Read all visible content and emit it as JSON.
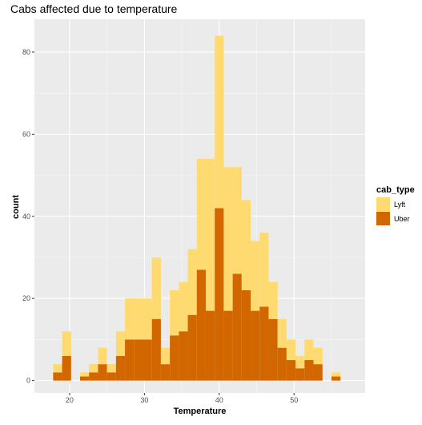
{
  "chart_data": {
    "type": "bar",
    "title": "Cabs affected due to temperature",
    "xlabel": "Temperature",
    "ylabel": "count",
    "stacked": true,
    "bin_width": 1.2,
    "xlim": [
      15.3,
      59.5
    ],
    "ylim": [
      -3,
      88
    ],
    "x_ticks": [
      20,
      30,
      40,
      50
    ],
    "y_ticks": [
      0,
      20,
      40,
      60,
      80
    ],
    "grid": true,
    "legend": {
      "title": "cab_type",
      "position": "right"
    },
    "bin_centers": [
      18.4,
      19.6,
      20.8,
      22.0,
      23.2,
      24.4,
      25.6,
      26.8,
      28.0,
      29.2,
      30.4,
      31.6,
      32.8,
      34.0,
      35.2,
      36.4,
      37.6,
      38.8,
      40.0,
      41.2,
      42.4,
      43.6,
      44.8,
      46.0,
      47.2,
      48.4,
      49.6,
      50.8,
      52.0,
      53.2,
      54.4,
      55.6,
      56.8
    ],
    "series": [
      {
        "name": "Uber",
        "color": "#D26700",
        "values": [
          2,
          6,
          0,
          1,
          2,
          4,
          2,
          6,
          10,
          10,
          10,
          15,
          4,
          11,
          12,
          16,
          27,
          17,
          42,
          17,
          26,
          22,
          17,
          18,
          15,
          8,
          5,
          3,
          5,
          4,
          0,
          1,
          0
        ]
      },
      {
        "name": "Lyft",
        "color": "#FFDA70",
        "values": [
          2,
          6,
          0,
          1,
          2,
          4,
          2,
          6,
          10,
          10,
          10,
          15,
          4,
          11,
          12,
          16,
          27,
          37,
          42,
          35,
          26,
          22,
          17,
          18,
          9,
          7,
          5,
          3,
          5,
          4,
          0,
          1,
          0
        ]
      }
    ]
  }
}
